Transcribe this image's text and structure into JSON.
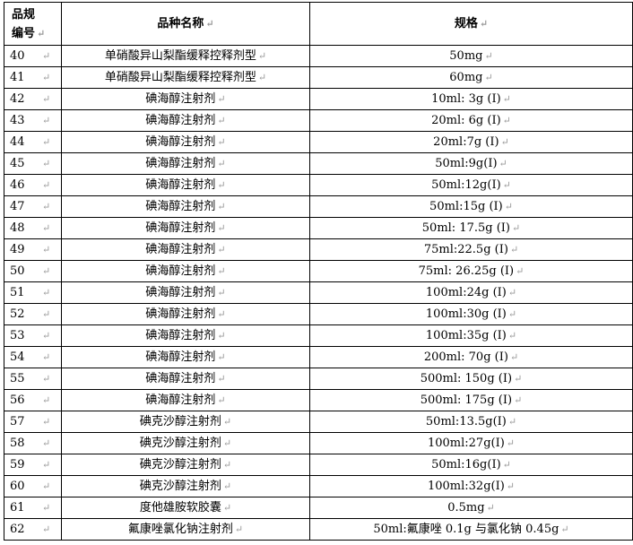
{
  "header": {
    "col_no_line1": "品规",
    "col_no_line2": "编号",
    "col_name": "品种名称",
    "col_spec": "规格"
  },
  "rows": [
    {
      "no": "40",
      "name": "单硝酸异山梨酯缓释控释剂型",
      "spec": "50mg"
    },
    {
      "no": "41",
      "name": "单硝酸异山梨酯缓释控释剂型",
      "spec": "60mg"
    },
    {
      "no": "42",
      "name": "碘海醇注射剂",
      "spec": "10ml: 3g (I)"
    },
    {
      "no": "43",
      "name": "碘海醇注射剂",
      "spec": "20ml: 6g (I)"
    },
    {
      "no": "44",
      "name": "碘海醇注射剂",
      "spec": "20ml:7g (I)"
    },
    {
      "no": "45",
      "name": "碘海醇注射剂",
      "spec": "50ml:9g(Ⅰ)"
    },
    {
      "no": "46",
      "name": "碘海醇注射剂",
      "spec": "50ml:12g(Ⅰ)"
    },
    {
      "no": "47",
      "name": "碘海醇注射剂",
      "spec": "50ml:15g (I)"
    },
    {
      "no": "48",
      "name": "碘海醇注射剂",
      "spec": "50ml: 17.5g (I)"
    },
    {
      "no": "49",
      "name": "碘海醇注射剂",
      "spec": "75ml:22.5g (I)"
    },
    {
      "no": "50",
      "name": "碘海醇注射剂",
      "spec": "75ml: 26.25g (I)"
    },
    {
      "no": "51",
      "name": "碘海醇注射剂",
      "spec": "100ml:24g (I)"
    },
    {
      "no": "52",
      "name": "碘海醇注射剂",
      "spec": "100ml:30g (I)"
    },
    {
      "no": "53",
      "name": "碘海醇注射剂",
      "spec": "100ml:35g (I)"
    },
    {
      "no": "54",
      "name": "碘海醇注射剂",
      "spec": "200ml: 70g (I)"
    },
    {
      "no": "55",
      "name": "碘海醇注射剂",
      "spec": "500ml: 150g (I)"
    },
    {
      "no": "56",
      "name": "碘海醇注射剂",
      "spec": "500ml: 175g (I)"
    },
    {
      "no": "57",
      "name": "碘克沙醇注射剂",
      "spec": "50ml:13.5g(I)"
    },
    {
      "no": "58",
      "name": "碘克沙醇注射剂",
      "spec": "100ml:27g(I)"
    },
    {
      "no": "59",
      "name": "碘克沙醇注射剂",
      "spec": "50ml:16g(I)"
    },
    {
      "no": "60",
      "name": "碘克沙醇注射剂",
      "spec": "100ml:32g(I)"
    },
    {
      "no": "61",
      "name": "度他雄胺软胶囊",
      "spec": "0.5mg"
    },
    {
      "no": "62",
      "name": "氟康唑氯化钠注射剂",
      "spec": "50ml:氟康唑 0.1g 与氯化钠 0.45g"
    }
  ],
  "paragraph_mark": "↵"
}
